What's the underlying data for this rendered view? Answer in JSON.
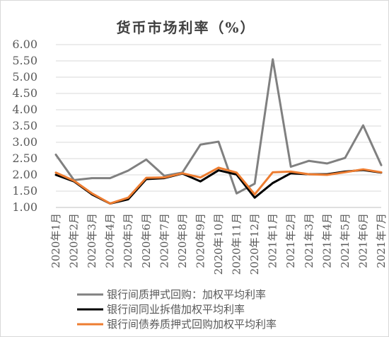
{
  "chart_data": {
    "type": "line",
    "title": "货币市场利率（%）",
    "ylim": [
      1.0,
      6.0
    ],
    "yticks": [
      "1.00",
      "1.50",
      "2.00",
      "2.50",
      "3.00",
      "3.50",
      "4.00",
      "4.50",
      "5.00",
      "5.50",
      "6.00"
    ],
    "grid": "horizontal",
    "legend_position": "bottom",
    "categories": [
      "2020年1月",
      "2020年2月",
      "2020年3月",
      "2020年4月",
      "2020年5月",
      "2020年6月",
      "2020年7月",
      "2020年8月",
      "2020年9月",
      "2020年10月",
      "2020年11月",
      "2020年12月",
      "2021年1月",
      "2021年2月",
      "2021年3月",
      "2021年4月",
      "2021年5月",
      "2021年6月",
      "2021年7月"
    ],
    "series": [
      {
        "name": "银行间质押式回购：加权平均利率",
        "color": "#808080",
        "values": [
          2.62,
          1.84,
          1.9,
          1.9,
          2.13,
          2.47,
          1.97,
          2.07,
          2.93,
          3.02,
          1.43,
          1.73,
          5.55,
          2.25,
          2.43,
          2.35,
          2.52,
          3.52,
          2.3
        ]
      },
      {
        "name": "银行间同业拆借加权平均利率",
        "color": "#000000",
        "values": [
          2.0,
          1.8,
          1.4,
          1.12,
          1.25,
          1.87,
          1.9,
          2.04,
          1.8,
          2.14,
          2.01,
          1.3,
          1.75,
          2.05,
          2.02,
          2.02,
          2.1,
          2.15,
          2.07
        ]
      },
      {
        "name": "银行间债券质押式回购加权平均利率",
        "color": "#ed7d31",
        "values": [
          2.07,
          1.82,
          1.43,
          1.12,
          1.3,
          1.91,
          1.92,
          2.05,
          1.92,
          2.22,
          2.07,
          1.4,
          2.08,
          2.1,
          2.02,
          2.0,
          2.08,
          2.17,
          2.08
        ]
      }
    ]
  }
}
